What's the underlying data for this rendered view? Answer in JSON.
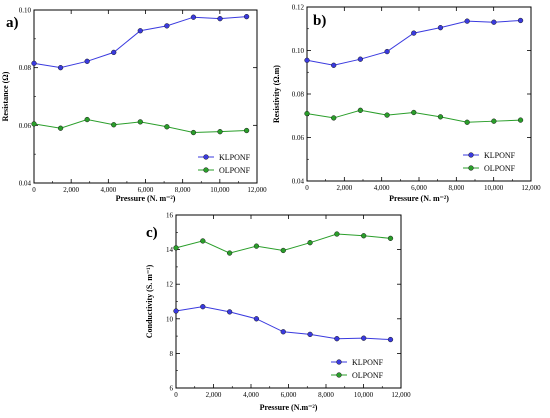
{
  "chart_data": [
    {
      "type": "line",
      "panel_label": "a)",
      "xlabel": "Pressure (N. m⁻²)",
      "ylabel": "Resistance (Ω)",
      "xlim": [
        0,
        12000
      ],
      "ylim": [
        0.04,
        0.1
      ],
      "x_ticks": [
        0,
        2000,
        4000,
        6000,
        8000,
        10000,
        12000
      ],
      "x_tick_labels": [
        "0",
        "2,000",
        "4,000",
        "6,000",
        "8,000",
        "10,000",
        "12,000"
      ],
      "y_ticks": [
        0.04,
        0.06,
        0.08,
        0.1
      ],
      "y_tick_labels": [
        "0.04",
        "0.06",
        "0.08",
        "0.10"
      ],
      "legend_position": "bottom-right",
      "x": [
        0,
        1430,
        2860,
        4290,
        5720,
        7150,
        8580,
        10010,
        11440
      ],
      "series": [
        {
          "name": "KLPONF",
          "color": "#3a3adf",
          "values": [
            0.0815,
            0.08,
            0.0822,
            0.0853,
            0.0928,
            0.0945,
            0.0975,
            0.097,
            0.0977
          ]
        },
        {
          "name": "OLPONF",
          "color": "#2a9e2a",
          "values": [
            0.0605,
            0.059,
            0.062,
            0.0602,
            0.0612,
            0.0595,
            0.0575,
            0.0578,
            0.0582
          ]
        }
      ]
    },
    {
      "type": "line",
      "panel_label": "b)",
      "xlabel": "Pressure (N. m⁻²)",
      "ylabel": "Resistivity (Ω.m)",
      "xlim": [
        0,
        12000
      ],
      "ylim": [
        0.04,
        0.12
      ],
      "x_ticks": [
        0,
        2000,
        4000,
        6000,
        8000,
        10000,
        12000
      ],
      "x_tick_labels": [
        "0",
        "2,000",
        "4,000",
        "6,000",
        "8,000",
        "10,000",
        "12,000"
      ],
      "y_ticks": [
        0.04,
        0.06,
        0.08,
        0.1,
        0.12
      ],
      "y_tick_labels": [
        "0.04",
        "0.06",
        "0.08",
        "0.10",
        "0.12"
      ],
      "legend_position": "bottom-right",
      "x": [
        0,
        1430,
        2860,
        4290,
        5720,
        7150,
        8580,
        10010,
        11440
      ],
      "series": [
        {
          "name": "KLPONF",
          "color": "#3a3adf",
          "values": [
            0.0955,
            0.0932,
            0.096,
            0.0995,
            0.108,
            0.1105,
            0.1135,
            0.113,
            0.1138
          ]
        },
        {
          "name": "OLPONF",
          "color": "#2a9e2a",
          "values": [
            0.071,
            0.069,
            0.0725,
            0.0703,
            0.0715,
            0.0695,
            0.067,
            0.0675,
            0.068
          ]
        }
      ]
    },
    {
      "type": "line",
      "panel_label": "c)",
      "xlabel": "Pressure (N.m⁻²)",
      "ylabel": "Conductivity (S. m⁻¹)",
      "xlim": [
        0,
        12000
      ],
      "ylim": [
        6,
        16
      ],
      "x_ticks": [
        0,
        2000,
        4000,
        6000,
        8000,
        10000,
        12000
      ],
      "x_tick_labels": [
        "0",
        "2,000",
        "4,000",
        "6,000",
        "8,000",
        "10,000",
        "12,000"
      ],
      "y_ticks": [
        6,
        8,
        10,
        12,
        14,
        16
      ],
      "y_tick_labels": [
        "6",
        "8",
        "10",
        "12",
        "14",
        "16"
      ],
      "legend_position": "bottom-right",
      "x": [
        0,
        1430,
        2860,
        4290,
        5720,
        7150,
        8580,
        10010,
        11440
      ],
      "series": [
        {
          "name": "KLPONF",
          "color": "#3a3adf",
          "values": [
            10.45,
            10.7,
            10.4,
            10.0,
            9.25,
            9.1,
            8.85,
            8.88,
            8.8
          ]
        },
        {
          "name": "OLPONF",
          "color": "#2a9e2a",
          "values": [
            14.1,
            14.5,
            13.8,
            14.2,
            13.95,
            14.4,
            14.9,
            14.8,
            14.65
          ]
        }
      ]
    }
  ]
}
